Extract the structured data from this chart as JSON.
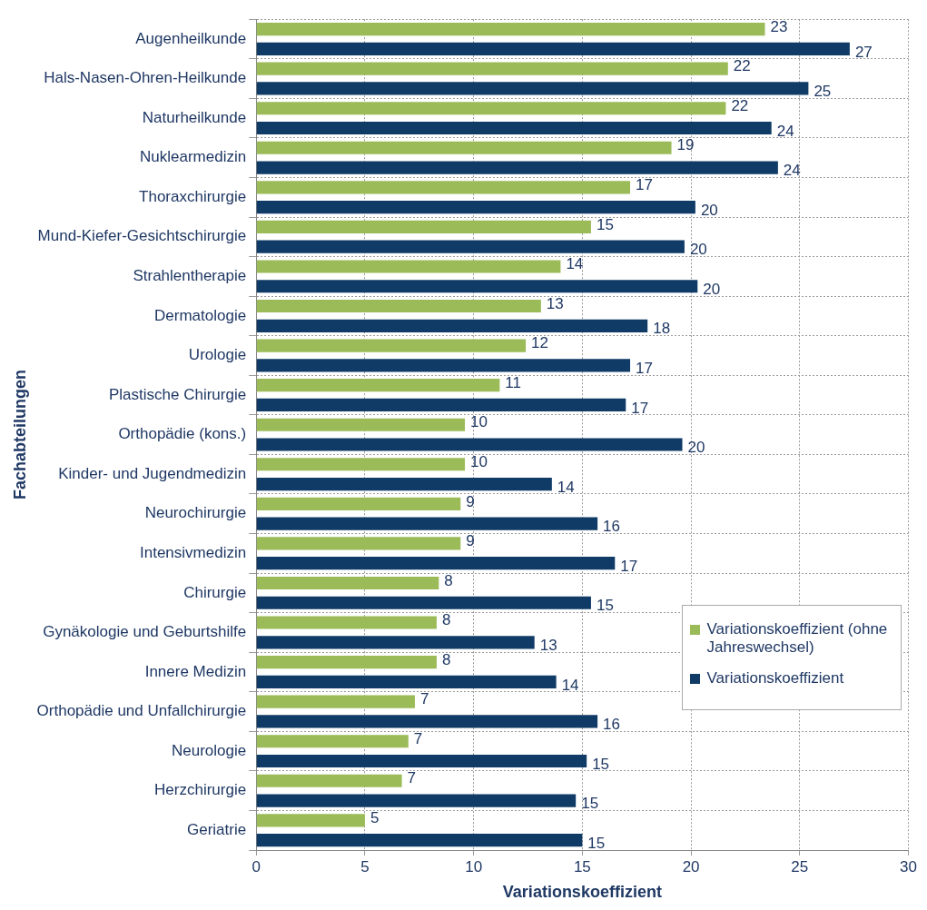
{
  "chart_data": {
    "type": "bar",
    "orientation": "horizontal",
    "xlabel": "Variationskoeffizient",
    "ylabel": "Fachabteilungen",
    "categories": [
      "Augenheilkunde",
      "Hals-Nasen-Ohren-Heilkunde",
      "Naturheilkunde",
      "Nuklearmedizin",
      "Thoraxchirurgie",
      "Mund-Kiefer-Gesichtschirurgie",
      "Strahlentherapie",
      "Dermatologie",
      "Urologie",
      "Plastische Chirurgie",
      "Orthopädie (kons.)",
      "Kinder- und Jugendmedizin",
      "Neurochirurgie",
      "Intensivmedizin",
      "Chirurgie",
      "Gynäkologie und Geburtshilfe",
      "Innere Medizin",
      "Orthopädie und Unfallchirurgie",
      "Neurologie",
      "Herzchirurgie",
      "Geriatrie"
    ],
    "series": [
      {
        "name": "Variationskoeffizient (ohne Jahreswechsel)",
        "color": "#9bbb59",
        "values": [
          23.4,
          21.7,
          21.6,
          19.1,
          17.2,
          15.4,
          14.0,
          13.1,
          12.4,
          11.2,
          9.6,
          9.6,
          9.4,
          9.4,
          8.4,
          8.3,
          8.3,
          7.3,
          7.0,
          6.7,
          5.0
        ],
        "value_labels": [
          "23",
          "22",
          "22",
          "19",
          "17",
          "15",
          "14",
          "13",
          "12",
          "11",
          "10",
          "10",
          "9",
          "9",
          "8",
          "8",
          "8",
          "7",
          "7",
          "7",
          "5"
        ]
      },
      {
        "name": "Variationskoeffizient",
        "color": "#0f3b66",
        "values": [
          27.3,
          25.4,
          23.7,
          24.0,
          20.2,
          19.7,
          20.3,
          18.0,
          17.2,
          17.0,
          19.6,
          13.6,
          15.7,
          16.5,
          15.4,
          12.8,
          13.8,
          15.7,
          15.2,
          14.7,
          15.0
        ],
        "value_labels": [
          "27",
          "25",
          "24",
          "24",
          "20",
          "20",
          "20",
          "18",
          "17",
          "17",
          "20",
          "14",
          "16",
          "17",
          "15",
          "13",
          "14",
          "16",
          "15",
          "15",
          "15"
        ]
      }
    ],
    "xlim": [
      0,
      30
    ],
    "xticks": [
      0,
      5,
      10,
      15,
      20,
      25,
      30
    ],
    "grid": true,
    "legend": "bottom right"
  }
}
